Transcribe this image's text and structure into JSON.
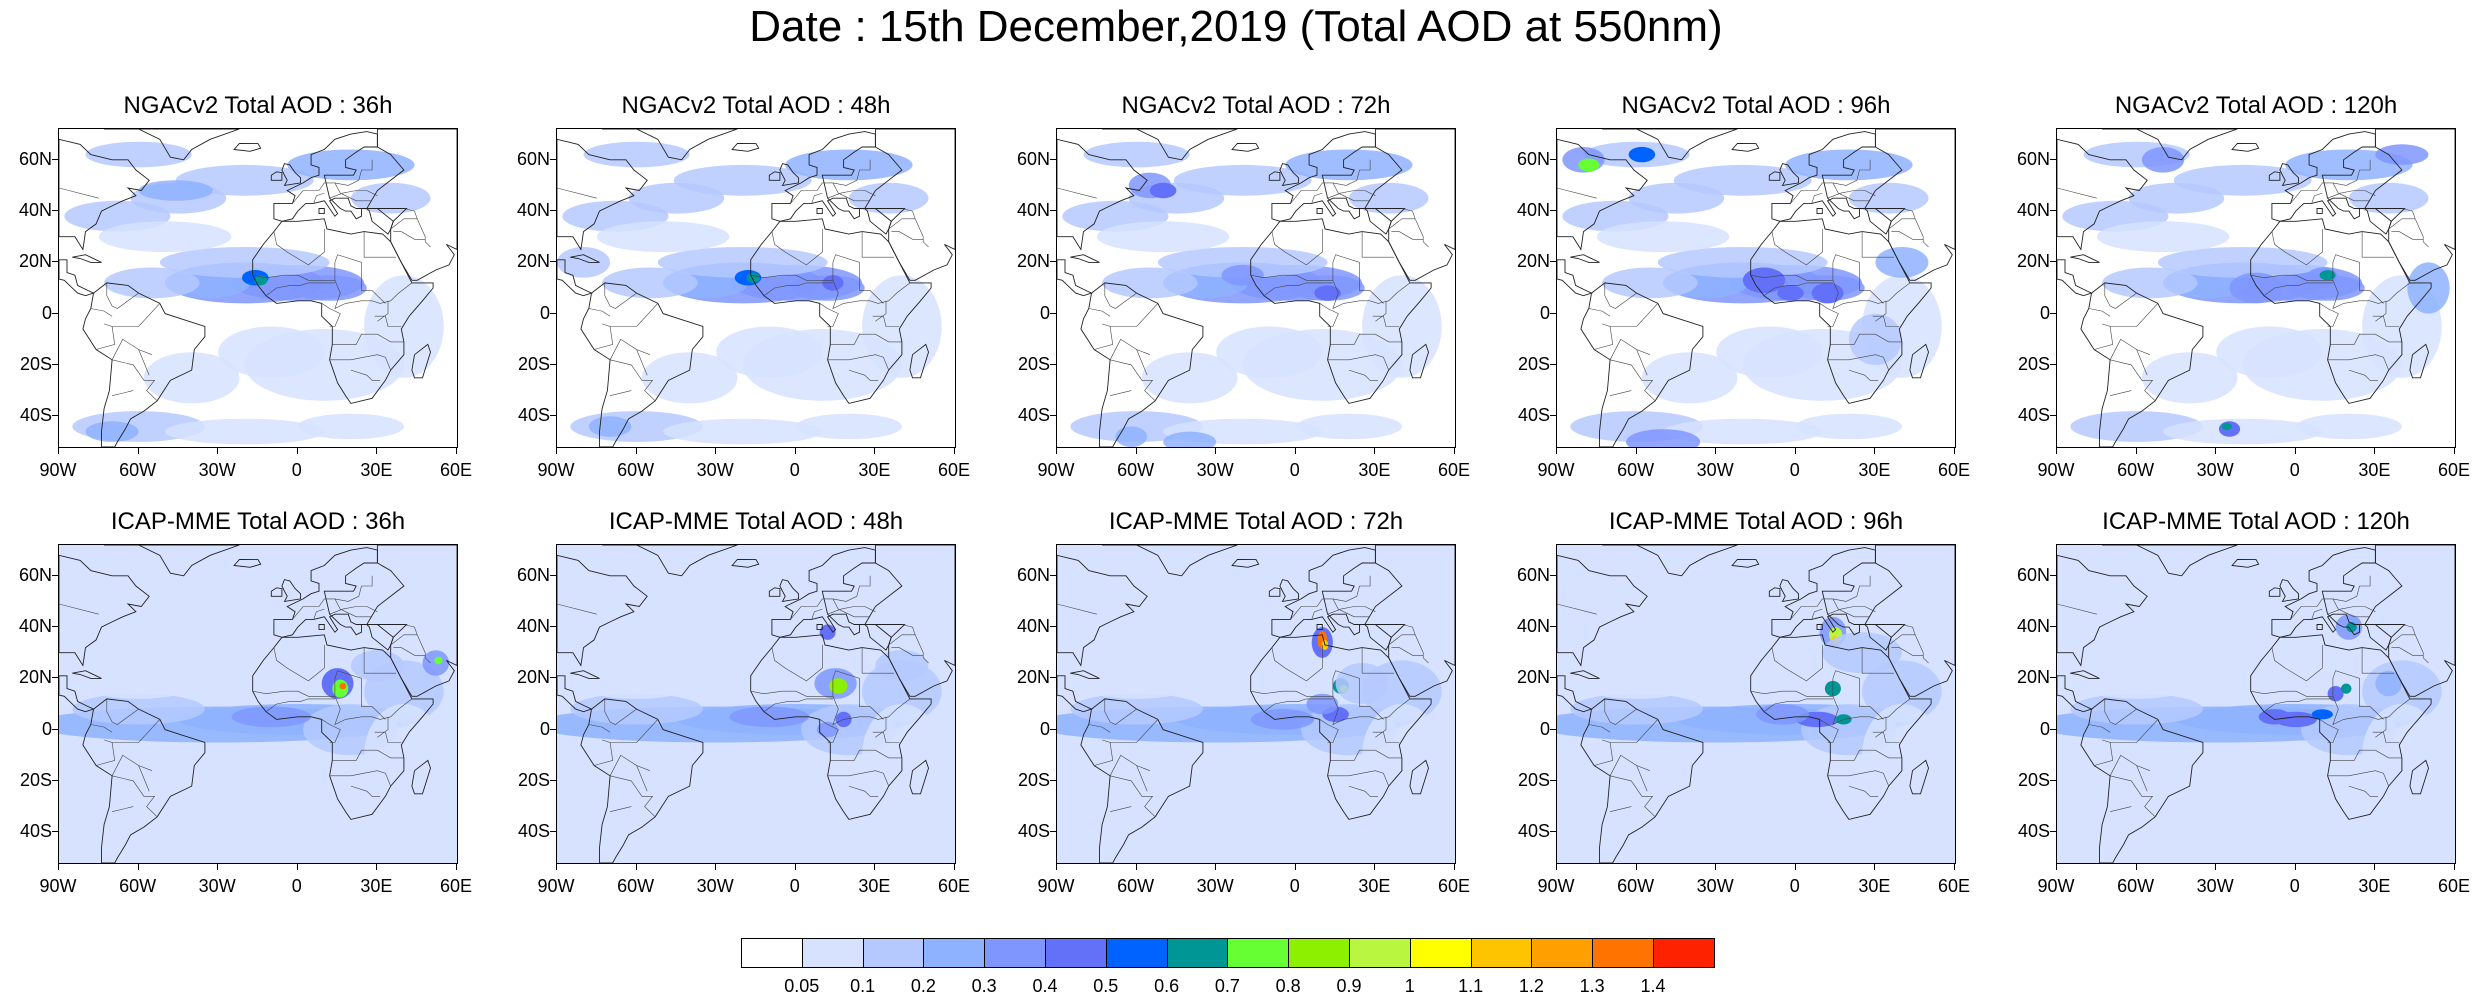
{
  "title": "Date : 15th December,2019 (Total AOD at 550nm)",
  "lat_labels": [
    "60N",
    "40N",
    "20N",
    "0",
    "20S",
    "40S"
  ],
  "lon_labels": [
    "90W",
    "60W",
    "30W",
    "0",
    "30E",
    "60E"
  ],
  "panels": [
    {
      "title": "NGACv2 Total AOD : 36h",
      "model": "NGACv2",
      "lead_hours": 36
    },
    {
      "title": "NGACv2 Total AOD : 48h",
      "model": "NGACv2",
      "lead_hours": 48
    },
    {
      "title": "NGACv2 Total AOD : 72h",
      "model": "NGACv2",
      "lead_hours": 72
    },
    {
      "title": "NGACv2 Total AOD : 96h",
      "model": "NGACv2",
      "lead_hours": 96
    },
    {
      "title": "NGACv2 Total AOD : 120h",
      "model": "NGACv2",
      "lead_hours": 120
    },
    {
      "title": "ICAP-MME Total AOD : 36h",
      "model": "ICAP-MME",
      "lead_hours": 36
    },
    {
      "title": "ICAP-MME Total AOD : 48h",
      "model": "ICAP-MME",
      "lead_hours": 48
    },
    {
      "title": "ICAP-MME Total AOD : 72h",
      "model": "ICAP-MME",
      "lead_hours": 72
    },
    {
      "title": "ICAP-MME Total AOD : 96h",
      "model": "ICAP-MME",
      "lead_hours": 96
    },
    {
      "title": "ICAP-MME Total AOD : 120h",
      "model": "ICAP-MME",
      "lead_hours": 120
    }
  ],
  "colorbar": {
    "labels": [
      "0.05",
      "0.1",
      "0.2",
      "0.3",
      "0.4",
      "0.5",
      "0.6",
      "0.7",
      "0.8",
      "0.9",
      "1",
      "1.1",
      "1.2",
      "1.3",
      "1.4"
    ],
    "colors": [
      "#ffffff",
      "#d6e2ff",
      "#b5c9ff",
      "#8eb2ff",
      "#7f96ff",
      "#6370f8",
      "#0063ff",
      "#009696",
      "#66ff33",
      "#8cf000",
      "#b9f640",
      "#ffff00",
      "#ffc400",
      "#ffa000",
      "#ff7300",
      "#ff2200"
    ]
  },
  "colors": {
    "land_outline": "#222222",
    "background": "#ffffff"
  }
}
